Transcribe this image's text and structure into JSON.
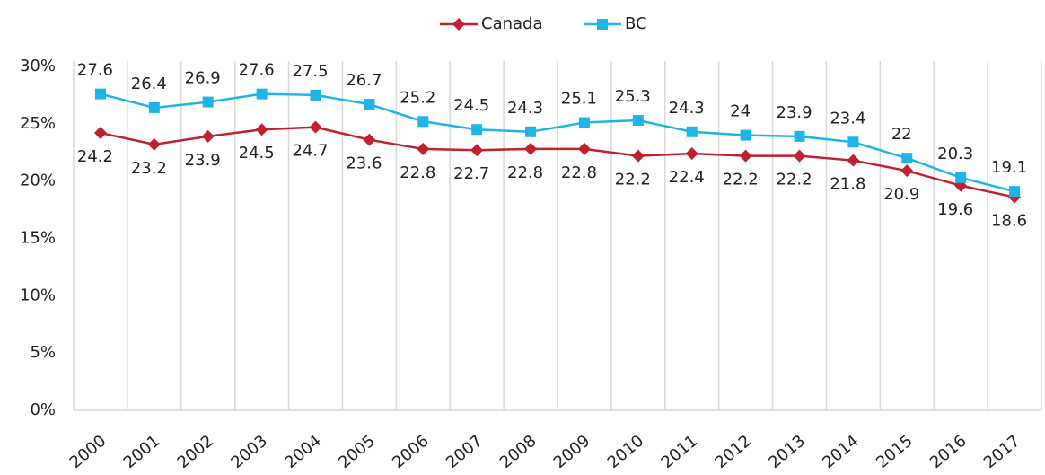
{
  "chart_data": {
    "type": "line",
    "categories": [
      "2000",
      "2001",
      "2002",
      "2003",
      "2004",
      "2005",
      "2006",
      "2007",
      "2008",
      "2009",
      "2010",
      "2011",
      "2012",
      "2013",
      "2014",
      "2015",
      "2016",
      "2017"
    ],
    "series": [
      {
        "name": "Canada",
        "color": "#c0212f",
        "marker": "diamond",
        "values": [
          24.2,
          23.2,
          23.9,
          24.5,
          24.7,
          23.6,
          22.8,
          22.7,
          22.8,
          22.8,
          22.2,
          22.4,
          22.2,
          22.2,
          21.8,
          20.9,
          19.6,
          18.6
        ]
      },
      {
        "name": "BC",
        "color": "#1fb4e6",
        "marker": "square",
        "values": [
          27.6,
          26.4,
          26.9,
          27.6,
          27.5,
          26.7,
          25.2,
          24.5,
          24.3,
          25.1,
          25.3,
          24.3,
          24,
          23.9,
          23.4,
          22,
          20.3,
          19.1
        ]
      }
    ],
    "ylim": [
      0,
      30
    ],
    "yticks": [
      {
        "value": 0,
        "label": "0%"
      },
      {
        "value": 5,
        "label": "5%"
      },
      {
        "value": 10,
        "label": "10%"
      },
      {
        "value": 15,
        "label": "15%"
      },
      {
        "value": 20,
        "label": "20%"
      },
      {
        "value": 25,
        "label": "25%"
      },
      {
        "value": 30,
        "label": "30%"
      }
    ],
    "legend": "top"
  }
}
